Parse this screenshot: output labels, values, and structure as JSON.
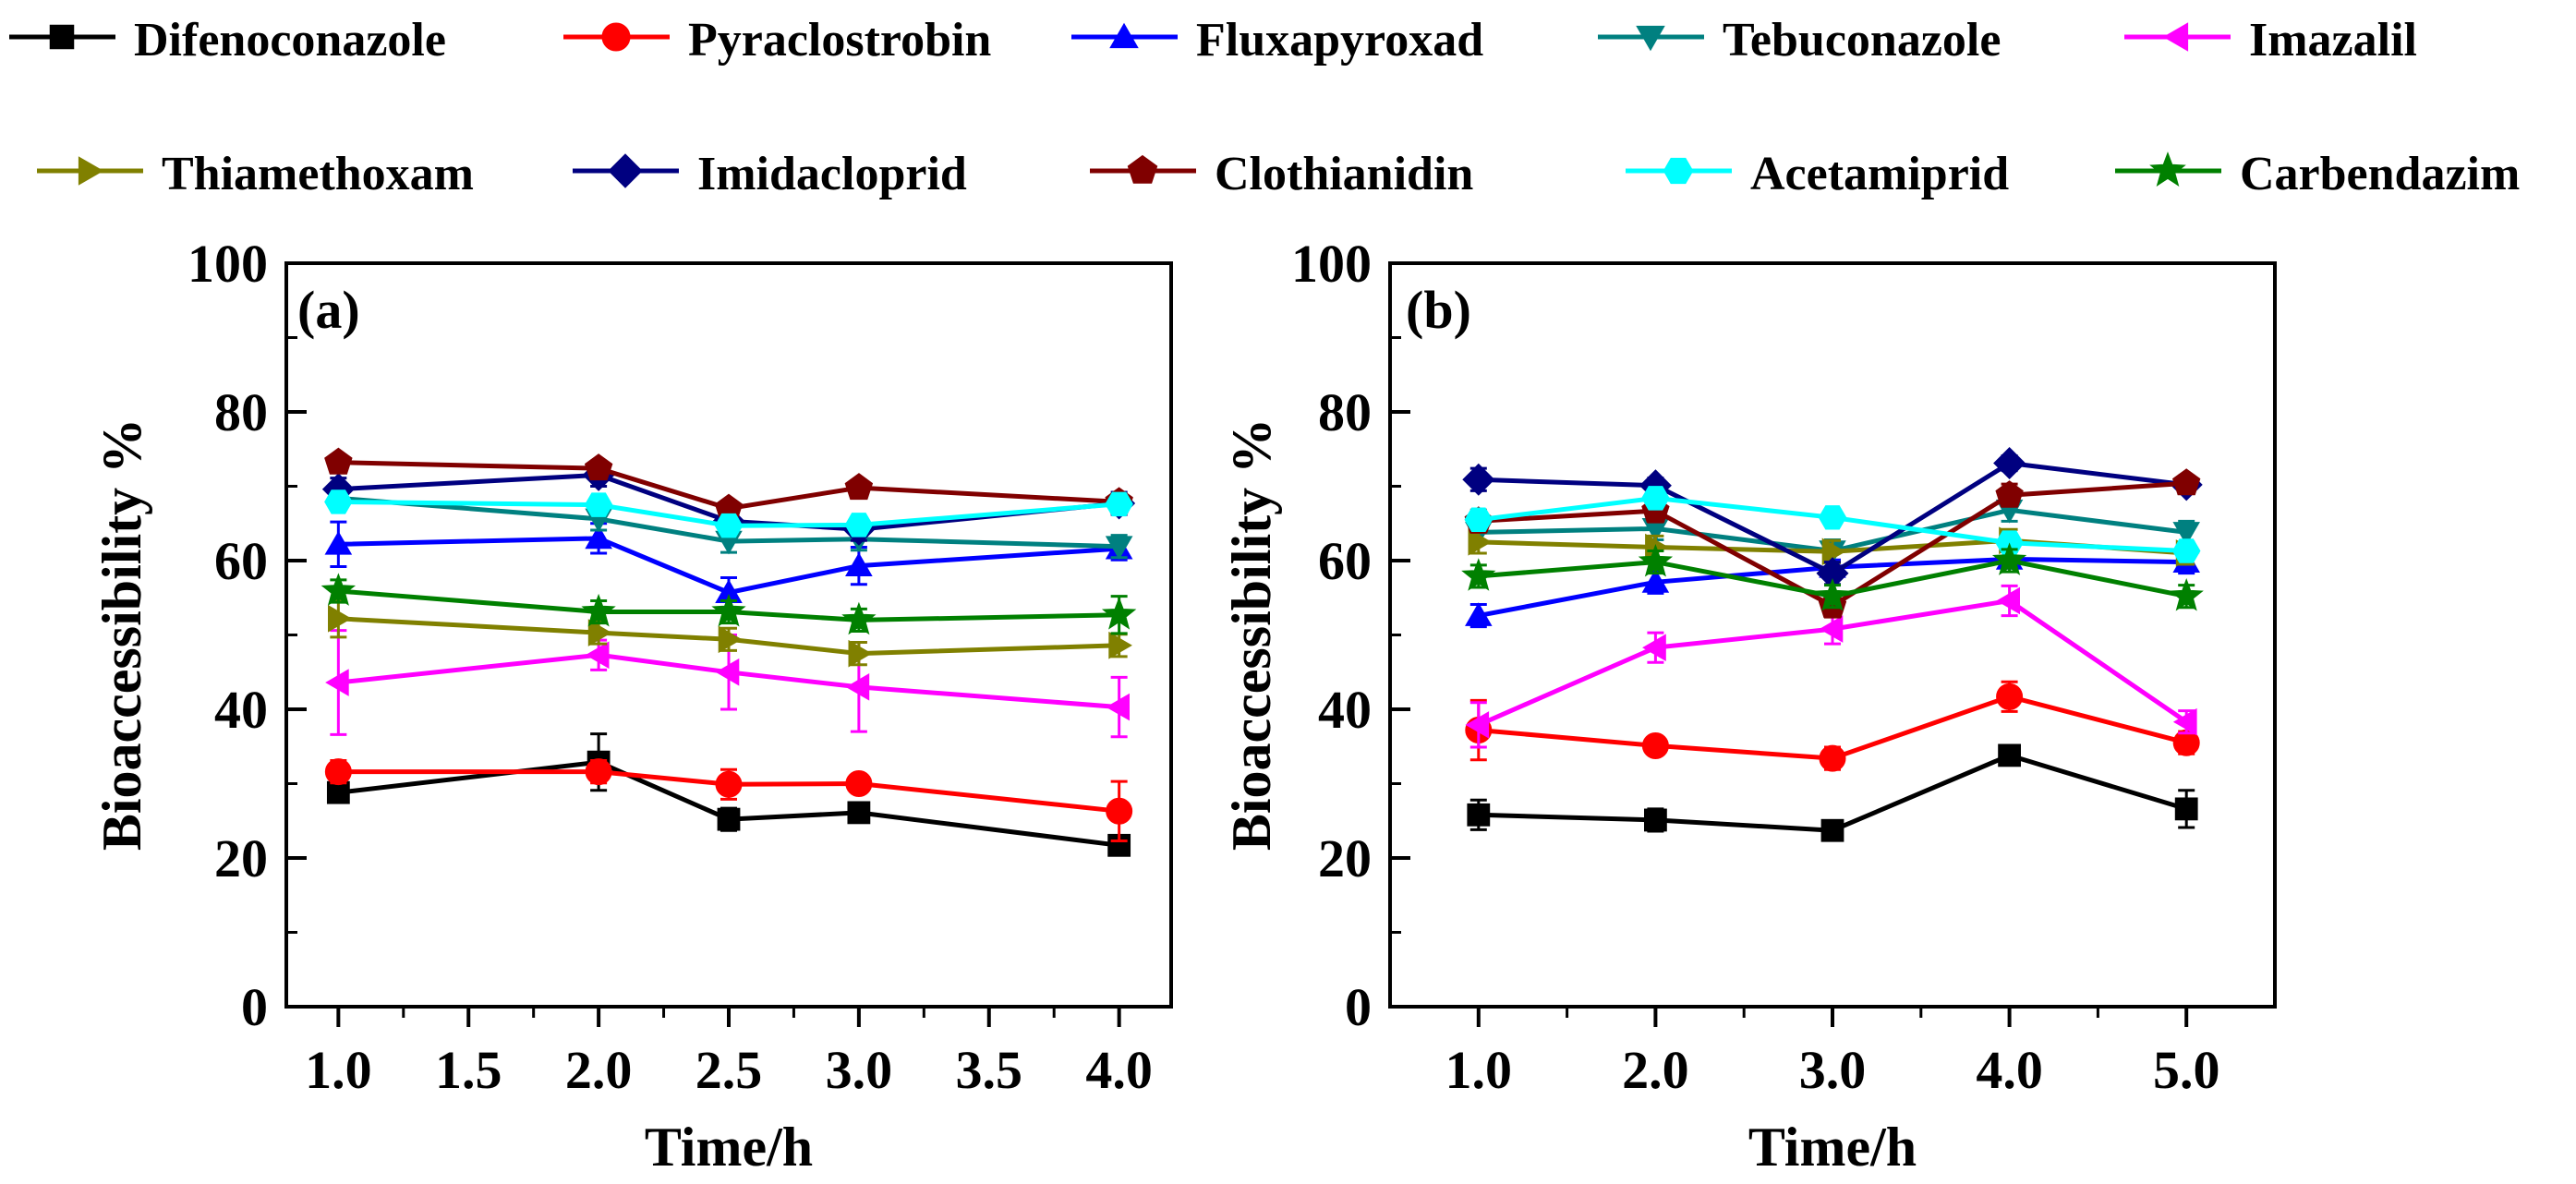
{
  "legend": {
    "row1": [
      "Difenoconazole",
      "Pyraclostrobin",
      "Fluxapyroxad",
      "Tebuconazole",
      "Imazalil"
    ],
    "row2": [
      "Thiamethoxam",
      "Imidacloprid",
      "Clothianidin",
      "Acetamiprid",
      "Carbendazim"
    ]
  },
  "colors": {
    "Difenoconazole": "#000000",
    "Pyraclostrobin": "#ff0000",
    "Fluxapyroxad": "#0000ff",
    "Tebuconazole": "#008080",
    "Imazalil": "#ff00ff",
    "Thiamethoxam": "#808000",
    "Imidacloprid": "#000080",
    "Clothianidin": "#800000",
    "Acetamiprid": "#00ffff",
    "Carbendazim": "#008000"
  },
  "markers": {
    "Difenoconazole": "square",
    "Pyraclostrobin": "circle",
    "Fluxapyroxad": "triangle-up",
    "Tebuconazole": "triangle-down",
    "Imazalil": "triangle-left",
    "Thiamethoxam": "triangle-right",
    "Imidacloprid": "diamond",
    "Clothianidin": "pentagon",
    "Acetamiprid": "hexagon",
    "Carbendazim": "star"
  },
  "chart_data": [
    {
      "type": "line",
      "panel_label": "(a)",
      "xlabel": "Time/h",
      "ylabel": "Bioaccessibility %",
      "xlim": [
        0.8,
        4.2
      ],
      "ylim": [
        0,
        100
      ],
      "xticks": [
        "1.0",
        "1.5",
        "2.0",
        "2.5",
        "3.0",
        "3.5",
        "4.0"
      ],
      "yticks": [
        "0",
        "20",
        "40",
        "60",
        "80",
        "100"
      ],
      "x": [
        1.0,
        2.0,
        2.5,
        3.0,
        4.0
      ],
      "series": [
        {
          "name": "Difenoconazole",
          "values": [
            28.8,
            32.9,
            25.2,
            26.1,
            21.7
          ],
          "errors": [
            1.0,
            3.8,
            1.5,
            1.2,
            1.0
          ]
        },
        {
          "name": "Pyraclostrobin",
          "values": [
            31.6,
            31.6,
            29.9,
            30.0,
            26.3
          ],
          "errors": [
            1.5,
            1.5,
            2.0,
            1.2,
            4.0
          ]
        },
        {
          "name": "Fluxapyroxad",
          "values": [
            62.2,
            63.0,
            55.7,
            59.3,
            61.6
          ],
          "errors": [
            3.0,
            2.0,
            2.0,
            2.5,
            1.5
          ]
        },
        {
          "name": "Tebuconazole",
          "values": [
            68.4,
            65.6,
            62.6,
            62.9,
            61.9
          ],
          "errors": [
            1.5,
            1.5,
            1.5,
            1.5,
            1.5
          ]
        },
        {
          "name": "Imazalil",
          "values": [
            43.6,
            47.3,
            45.0,
            43.0,
            40.3
          ],
          "errors": [
            7.0,
            2.0,
            5.0,
            6.0,
            4.0
          ]
        },
        {
          "name": "Thiamethoxam",
          "values": [
            52.2,
            50.3,
            49.4,
            47.5,
            48.6
          ],
          "errors": [
            2.5,
            1.5,
            1.5,
            1.5,
            1.5
          ]
        },
        {
          "name": "Imidacloprid",
          "values": [
            69.6,
            71.5,
            65.3,
            64.2,
            67.7
          ],
          "errors": [
            1.5,
            1.5,
            1.5,
            1.5,
            1.5
          ]
        },
        {
          "name": "Clothianidin",
          "values": [
            73.2,
            72.4,
            67.0,
            69.8,
            67.9
          ],
          "errors": [
            1.0,
            1.0,
            1.0,
            1.0,
            1.0
          ]
        },
        {
          "name": "Acetamiprid",
          "values": [
            67.9,
            67.5,
            64.7,
            64.8,
            67.6
          ],
          "errors": [
            1.0,
            1.0,
            1.0,
            1.0,
            1.0
          ]
        },
        {
          "name": "Carbendazim",
          "values": [
            55.9,
            53.1,
            53.1,
            52.0,
            52.7
          ],
          "errors": [
            1.5,
            1.5,
            1.5,
            1.5,
            2.5
          ]
        }
      ]
    },
    {
      "type": "line",
      "panel_label": "(b)",
      "xlabel": "Time/h",
      "ylabel": "Bioaccessibility %",
      "xlim": [
        0.5,
        5.5
      ],
      "ylim": [
        0,
        100
      ],
      "xticks": [
        "1.0",
        "2.0",
        "3.0",
        "4.0",
        "5.0"
      ],
      "yticks": [
        "0",
        "20",
        "40",
        "60",
        "80",
        "100"
      ],
      "x": [
        1.0,
        2.0,
        3.0,
        4.0,
        5.0
      ],
      "series": [
        {
          "name": "Difenoconazole",
          "values": [
            25.8,
            25.1,
            23.7,
            33.8,
            26.6
          ],
          "errors": [
            2.0,
            1.5,
            1.0,
            1.0,
            2.5
          ]
        },
        {
          "name": "Pyraclostrobin",
          "values": [
            37.2,
            35.1,
            33.4,
            41.7,
            35.5
          ],
          "errors": [
            4.0,
            1.0,
            1.5,
            2.0,
            1.5
          ]
        },
        {
          "name": "Fluxapyroxad",
          "values": [
            52.6,
            57.1,
            59.1,
            60.2,
            59.8
          ],
          "errors": [
            1.5,
            1.5,
            1.0,
            1.0,
            1.5
          ]
        },
        {
          "name": "Tebuconazole",
          "values": [
            63.8,
            64.3,
            61.3,
            66.8,
            63.8
          ],
          "errors": [
            1.5,
            1.5,
            1.5,
            1.5,
            1.5
          ]
        },
        {
          "name": "Imazalil",
          "values": [
            37.9,
            48.3,
            50.8,
            54.6,
            38.3
          ],
          "errors": [
            3.0,
            2.0,
            2.0,
            2.0,
            1.5
          ]
        },
        {
          "name": "Thiamethoxam",
          "values": [
            62.5,
            61.8,
            61.2,
            62.7,
            61.0
          ],
          "errors": [
            1.5,
            1.5,
            1.5,
            1.5,
            1.5
          ]
        },
        {
          "name": "Imidacloprid",
          "values": [
            70.9,
            70.1,
            58.3,
            73.1,
            70.2
          ],
          "errors": [
            1.5,
            1.0,
            1.5,
            1.0,
            1.0
          ]
        },
        {
          "name": "Clothianidin",
          "values": [
            65.3,
            66.7,
            53.9,
            68.8,
            70.4
          ],
          "errors": [
            1.5,
            1.5,
            1.5,
            1.5,
            1.0
          ]
        },
        {
          "name": "Acetamiprid",
          "values": [
            65.5,
            68.4,
            65.8,
            62.4,
            61.3
          ],
          "errors": [
            1.0,
            1.0,
            1.0,
            1.0,
            1.0
          ]
        },
        {
          "name": "Carbendazim",
          "values": [
            57.9,
            59.8,
            55.2,
            60.0,
            55.2
          ],
          "errors": [
            1.5,
            1.5,
            1.5,
            1.5,
            1.5
          ]
        }
      ]
    }
  ]
}
